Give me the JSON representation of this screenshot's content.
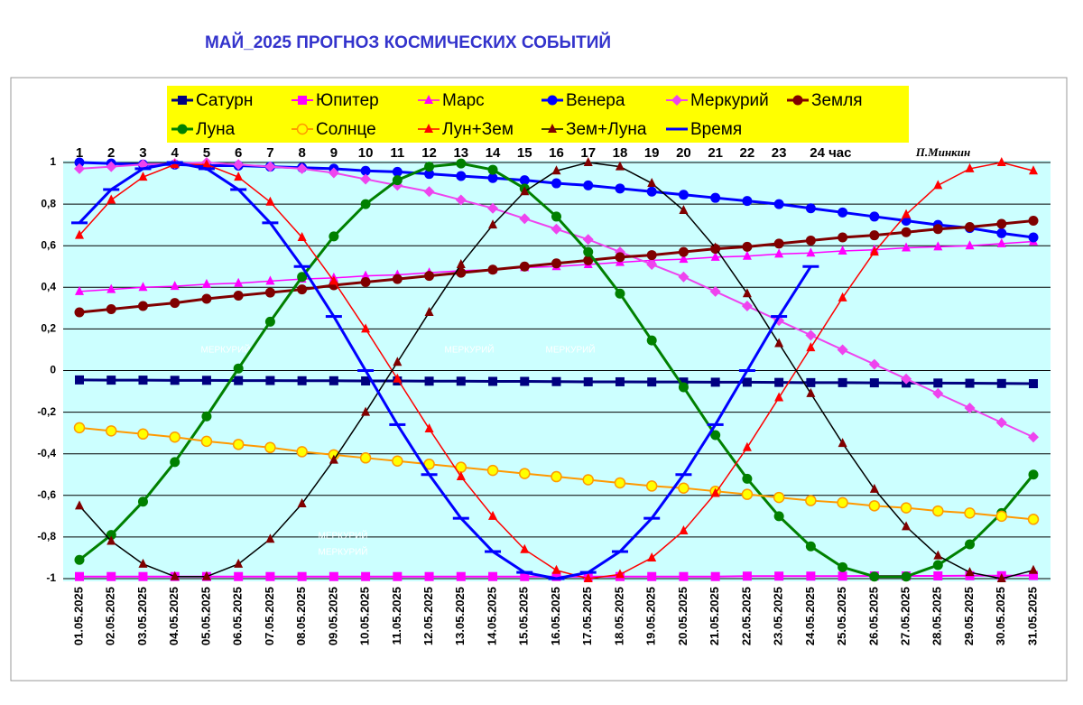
{
  "chart_data": {
    "type": "line",
    "title": "МАЙ_2025 ПРОГНОЗ КОСМИЧЕСКИХ СОБЫТИЙ",
    "signature": "П.Минкин",
    "hour_labels": [
      1,
      2,
      3,
      4,
      5,
      6,
      7,
      8,
      9,
      10,
      11,
      12,
      13,
      14,
      15,
      16,
      17,
      18,
      19,
      20,
      21,
      22,
      23,
      "24 час"
    ],
    "annotations": [
      "МЕРКУРИЙ",
      "МЕРКУРИЙ",
      "МЕРКУРИЙ",
      "МЕРКУРИЙ",
      "МЕРКУРИЙ"
    ],
    "categories": [
      "01.05.2025",
      "02.05.2025",
      "03.05.2025",
      "04.05.2025",
      "05.05.2025",
      "06.05.2025",
      "07.05.2025",
      "08.05.2025",
      "09.05.2025",
      "10.05.2025",
      "11.05.2025",
      "12.05.2025",
      "13.05.2025",
      "14.05.2025",
      "15.05.2025",
      "16.05.2025",
      "17.05.2025",
      "18.05.2025",
      "19.05.2025",
      "20.05.2025",
      "21.05.2025",
      "22.05.2025",
      "23.05.2025",
      "24.05.2025",
      "25.05.2025",
      "26.05.2025",
      "27.05.2025",
      "28.05.2025",
      "29.05.2025",
      "30.05.2025",
      "31.05.2025"
    ],
    "ylim": [
      -1,
      1
    ],
    "yticks": [
      -1,
      {
        "value": -0.8,
        "label": "-0,8"
      },
      {
        "value": -0.6,
        "label": "-0,6"
      },
      {
        "value": -0.4,
        "label": "-0,4"
      },
      {
        "value": -0.2,
        "label": "-0,2"
      },
      0,
      {
        "value": 0.2,
        "label": "0,2"
      },
      {
        "value": 0.4,
        "label": "0,4"
      },
      {
        "value": 0.6,
        "label": "0,6"
      },
      {
        "value": 0.8,
        "label": "0,8"
      },
      1
    ],
    "grid": true,
    "series": [
      {
        "name": "Сатурн",
        "color": "#000080",
        "marker": "square",
        "line_width": 3,
        "values": [
          -0.045,
          -0.046,
          -0.046,
          -0.047,
          -0.047,
          -0.048,
          -0.048,
          -0.049,
          -0.049,
          -0.05,
          -0.05,
          -0.051,
          -0.051,
          -0.052,
          -0.052,
          -0.053,
          -0.054,
          -0.054,
          -0.055,
          -0.055,
          -0.056,
          -0.056,
          -0.057,
          -0.058,
          -0.058,
          -0.059,
          -0.06,
          -0.06,
          -0.061,
          -0.062,
          -0.063
        ]
      },
      {
        "name": "Юпитер",
        "color": "#ff00ff",
        "marker": "square",
        "line_width": 2,
        "values": [
          -0.99,
          -0.99,
          -0.99,
          -0.99,
          -0.99,
          -0.99,
          -0.99,
          -0.99,
          -0.99,
          -0.99,
          -0.99,
          -0.99,
          -0.99,
          -0.99,
          -0.99,
          -0.99,
          -0.99,
          -0.99,
          -0.99,
          -0.99,
          -0.99,
          -0.988,
          -0.988,
          -0.988,
          -0.988,
          -0.987,
          -0.987,
          -0.987,
          -0.986,
          -0.986,
          -0.985
        ]
      },
      {
        "name": "Марс",
        "color": "#ff00ff",
        "marker": "triangle",
        "line_width": 1.5,
        "values": [
          0.38,
          0.39,
          0.4,
          0.405,
          0.415,
          0.42,
          0.43,
          0.44,
          0.445,
          0.455,
          0.46,
          0.47,
          0.48,
          0.485,
          0.495,
          0.5,
          0.51,
          0.52,
          0.53,
          0.535,
          0.545,
          0.55,
          0.56,
          0.565,
          0.575,
          0.58,
          0.59,
          0.595,
          0.6,
          0.61,
          0.62
        ]
      },
      {
        "name": "Венера",
        "color": "#0000ff",
        "marker": "circle",
        "line_width": 3,
        "values": [
          1.0,
          0.995,
          0.99,
          0.99,
          0.985,
          0.985,
          0.98,
          0.975,
          0.97,
          0.96,
          0.955,
          0.945,
          0.935,
          0.925,
          0.915,
          0.9,
          0.89,
          0.875,
          0.86,
          0.845,
          0.83,
          0.815,
          0.8,
          0.78,
          0.76,
          0.74,
          0.72,
          0.7,
          0.685,
          0.66,
          0.64
        ]
      },
      {
        "name": "Меркурий",
        "color": "#ee44ee",
        "marker": "diamond",
        "line_width": 2,
        "values": [
          0.97,
          0.98,
          0.99,
          0.995,
          1.0,
          0.99,
          0.98,
          0.97,
          0.95,
          0.92,
          0.89,
          0.86,
          0.82,
          0.78,
          0.73,
          0.68,
          0.63,
          0.57,
          0.51,
          0.45,
          0.38,
          0.31,
          0.24,
          0.17,
          0.1,
          0.03,
          -0.04,
          -0.11,
          -0.18,
          -0.25,
          -0.32
        ]
      },
      {
        "name": "Земля",
        "color": "#800000",
        "marker": "circle",
        "line_width": 3,
        "values": [
          0.28,
          0.295,
          0.31,
          0.325,
          0.345,
          0.36,
          0.375,
          0.39,
          0.41,
          0.425,
          0.44,
          0.455,
          0.47,
          0.485,
          0.5,
          0.515,
          0.53,
          0.545,
          0.555,
          0.57,
          0.585,
          0.595,
          0.61,
          0.625,
          0.64,
          0.65,
          0.665,
          0.68,
          0.69,
          0.705,
          0.72
        ]
      },
      {
        "name": "Луна",
        "color": "#008000",
        "marker": "circle",
        "line_width": 3,
        "values": [
          -0.91,
          -0.79,
          -0.63,
          -0.44,
          -0.22,
          0.01,
          0.235,
          0.45,
          0.645,
          0.8,
          0.915,
          0.98,
          0.995,
          0.965,
          0.875,
          0.74,
          0.57,
          0.37,
          0.145,
          -0.08,
          -0.31,
          -0.52,
          -0.7,
          -0.845,
          -0.945,
          -0.99,
          -0.99,
          -0.935,
          -0.835,
          -0.685,
          -0.5
        ]
      },
      {
        "name": "Солнце",
        "color": "#ff9900",
        "fill": "#ffff00",
        "marker": "circle",
        "line_width": 2,
        "values": [
          -0.275,
          -0.29,
          -0.305,
          -0.32,
          -0.34,
          -0.355,
          -0.37,
          -0.39,
          -0.405,
          -0.42,
          -0.435,
          -0.45,
          -0.465,
          -0.48,
          -0.495,
          -0.51,
          -0.525,
          -0.54,
          -0.555,
          -0.565,
          -0.58,
          -0.595,
          -0.61,
          -0.625,
          -0.635,
          -0.65,
          -0.66,
          -0.675,
          -0.685,
          -0.7,
          -0.715
        ]
      },
      {
        "name": "Лун+Зем",
        "color": "#ff0000",
        "marker": "triangle",
        "line_width": 1.5,
        "values": [
          0.65,
          0.82,
          0.93,
          0.99,
          0.99,
          0.93,
          0.81,
          0.64,
          0.43,
          0.2,
          -0.04,
          -0.28,
          -0.51,
          -0.7,
          -0.86,
          -0.96,
          -1.0,
          -0.98,
          -0.9,
          -0.77,
          -0.59,
          -0.37,
          -0.13,
          0.11,
          0.35,
          0.57,
          0.75,
          0.89,
          0.97,
          1.0,
          0.96
        ]
      },
      {
        "name": "Зем+Луна",
        "color": "#800000",
        "line_color": "#000000",
        "marker": "triangle",
        "line_width": 1.5,
        "values": [
          -0.65,
          -0.82,
          -0.93,
          -0.99,
          -0.99,
          -0.93,
          -0.81,
          -0.64,
          -0.43,
          -0.2,
          0.04,
          0.28,
          0.51,
          0.7,
          0.86,
          0.96,
          1.0,
          0.98,
          0.9,
          0.77,
          0.59,
          0.37,
          0.13,
          -0.11,
          -0.35,
          -0.57,
          -0.75,
          -0.89,
          -0.97,
          -1.0,
          -0.96
        ]
      },
      {
        "name": "Время",
        "color": "#0000ff",
        "marker": "dash",
        "line_width": 3,
        "values": [
          0.71,
          0.87,
          0.97,
          1.0,
          0.97,
          0.87,
          0.71,
          0.5,
          0.26,
          0,
          -0.26,
          -0.5,
          -0.71,
          -0.87,
          -0.97,
          -1.0,
          -0.97,
          -0.87,
          -0.71,
          -0.5,
          -0.26,
          0,
          0.26,
          0.5,
          null,
          null,
          null,
          null,
          null,
          null,
          null
        ]
      }
    ]
  }
}
